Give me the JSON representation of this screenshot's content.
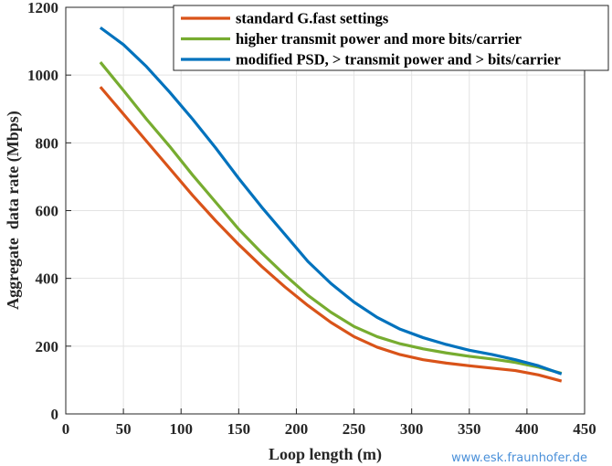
{
  "chart_data": {
    "type": "line",
    "title": "",
    "xlabel": "Loop length (m)",
    "ylabel": "Aggregate  data rate (Mbps)",
    "xlim": [
      0,
      450
    ],
    "ylim": [
      0,
      1200
    ],
    "xticks": [
      0,
      50,
      100,
      150,
      200,
      250,
      300,
      350,
      400,
      450
    ],
    "yticks": [
      0,
      200,
      400,
      600,
      800,
      1000,
      1200
    ],
    "grid": true,
    "legend_position": "top-right",
    "x": [
      30,
      50,
      70,
      90,
      110,
      130,
      150,
      170,
      190,
      210,
      230,
      250,
      270,
      290,
      310,
      330,
      350,
      370,
      390,
      410,
      430
    ],
    "series": [
      {
        "name": "standard G.fast settings",
        "color": "#d95319",
        "values": [
          965,
          885,
          805,
          725,
          645,
          570,
          500,
          435,
          375,
          320,
          270,
          228,
          197,
          175,
          160,
          150,
          142,
          135,
          128,
          115,
          97
        ]
      },
      {
        "name": "higher transmit power and more bits/carrier",
        "color": "#77ac30",
        "values": [
          1038,
          955,
          870,
          790,
          705,
          625,
          545,
          475,
          410,
          350,
          300,
          258,
          228,
          207,
          192,
          180,
          170,
          162,
          152,
          138,
          120
        ]
      },
      {
        "name": "modified PSD, > transmit power and > bits/carrier",
        "color": "#0072bd",
        "values": [
          1140,
          1090,
          1025,
          950,
          870,
          785,
          695,
          610,
          530,
          450,
          385,
          330,
          285,
          250,
          225,
          205,
          188,
          175,
          160,
          142,
          118
        ]
      }
    ]
  },
  "watermark": "www.esk.fraunhofer.de"
}
